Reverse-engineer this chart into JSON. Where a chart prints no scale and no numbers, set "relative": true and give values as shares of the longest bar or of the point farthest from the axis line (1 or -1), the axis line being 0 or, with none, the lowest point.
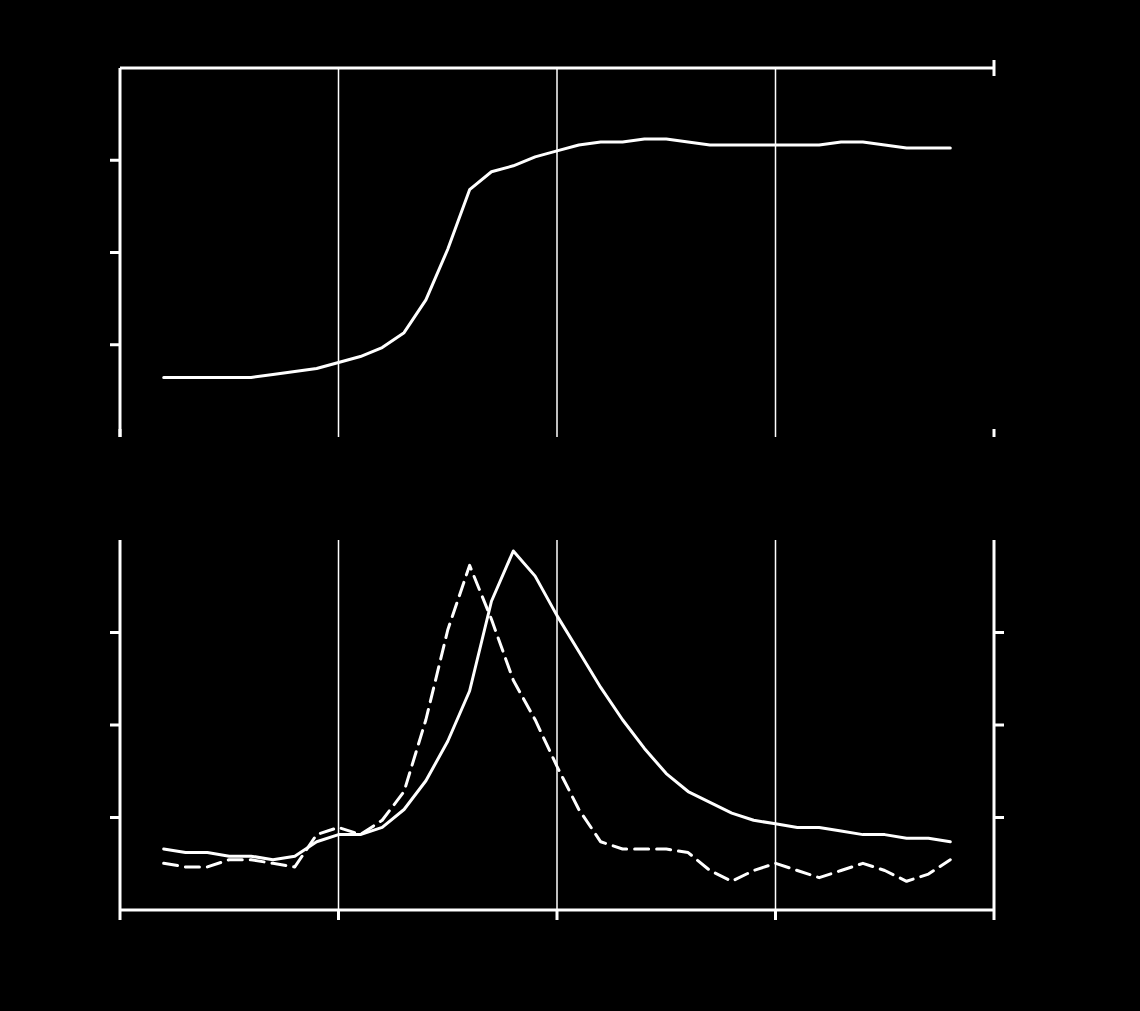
{
  "chart_data": [
    {
      "type": "line",
      "relative": true,
      "grid": "x",
      "line_style": "solid",
      "categories": [
        null,
        null,
        null,
        null,
        null,
        null,
        null,
        null,
        null,
        null,
        null,
        null,
        null,
        null,
        null,
        null,
        null,
        null,
        null,
        null,
        null,
        null,
        null,
        null,
        null,
        null,
        null,
        null,
        null,
        null,
        null,
        null,
        null,
        null,
        null,
        null,
        null
      ],
      "series": [
        {
          "color": "#ffffff",
          "values": [
            0.2,
            0.2,
            0.2,
            0.2,
            0.2,
            0.21,
            0.22,
            0.23,
            0.25,
            0.27,
            0.3,
            0.35,
            0.46,
            0.63,
            0.83,
            0.89,
            0.91,
            0.94,
            0.96,
            0.98,
            0.99,
            0.99,
            1,
            1,
            0.99,
            0.98,
            0.98,
            0.98,
            0.98,
            0.98,
            0.98,
            0.99,
            0.99,
            0.98,
            0.97,
            0.97,
            0.97
          ]
        }
      ]
    },
    {
      "type": "line",
      "relative": true,
      "grid": "x",
      "categories": [
        null,
        null,
        null,
        null,
        null,
        null,
        null,
        null,
        null,
        null,
        null,
        null,
        null,
        null,
        null,
        null,
        null,
        null,
        null,
        null,
        null,
        null,
        null,
        null,
        null,
        null,
        null,
        null,
        null,
        null,
        null,
        null,
        null,
        null,
        null,
        null,
        null
      ],
      "series": [
        {
          "color": "#ffffff",
          "line_style": "solid",
          "values": [
            0.17,
            0.16,
            0.16,
            0.15,
            0.15,
            0.14,
            0.15,
            0.19,
            0.21,
            0.21,
            0.23,
            0.28,
            0.36,
            0.47,
            0.61,
            0.86,
            1,
            0.93,
            0.82,
            0.72,
            0.62,
            0.53,
            0.45,
            0.38,
            0.33,
            0.3,
            0.27,
            0.25,
            0.24,
            0.23,
            0.23,
            0.22,
            0.21,
            0.21,
            0.2,
            0.2,
            0.19
          ]
        },
        {
          "color": "#ffffff",
          "line_style": "dashed",
          "values": [
            0.13,
            0.12,
            0.12,
            0.14,
            0.14,
            0.13,
            0.12,
            0.21,
            0.23,
            0.21,
            0.25,
            0.33,
            0.53,
            0.78,
            0.96,
            0.81,
            0.64,
            0.53,
            0.4,
            0.28,
            0.19,
            0.17,
            0.17,
            0.17,
            0.16,
            0.11,
            0.08,
            0.11,
            0.13,
            0.11,
            0.09,
            0.11,
            0.13,
            0.11,
            0.08,
            0.1,
            0.14
          ]
        }
      ]
    }
  ]
}
